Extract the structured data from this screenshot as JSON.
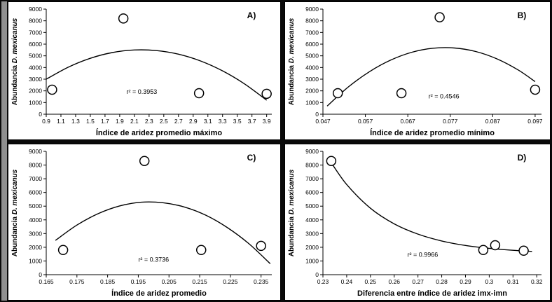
{
  "figure": {
    "background_color": "#0a0a0a",
    "panel_background": "#ffffff",
    "left_strip_color": "#8f8f8f",
    "line_color": "#000000"
  },
  "yaxis": {
    "label_prefix": "Abundancia",
    "label_species": "D. mexicanus",
    "tick_values": [
      0,
      1000,
      2000,
      3000,
      4000,
      5000,
      6000,
      7000,
      8000,
      9000
    ],
    "tick_labels": [
      "0",
      "1000",
      "2000",
      "3000",
      "4000",
      "5000",
      "6000",
      "7000",
      "8000",
      "9000"
    ],
    "range": [
      0,
      9000
    ]
  },
  "chart_data": [
    {
      "id": "panel-a",
      "type": "scatter",
      "panel_label": "A)",
      "xlabel": "Índice de aridez promedio máximo",
      "ylabel": "Abundancia D. mexicanus",
      "grid": false,
      "legend": "none",
      "r2": {
        "text": "r² = 0.3953",
        "x": 2.2,
        "y": 1750
      },
      "xlim": [
        0.9,
        3.97
      ],
      "ylim": [
        0,
        9000
      ],
      "xtick_values": [
        0.9,
        1.1,
        1.3,
        1.5,
        1.7,
        1.9,
        2.1,
        2.3,
        2.5,
        2.7,
        2.9,
        3.1,
        3.3,
        3.5,
        3.7,
        3.9
      ],
      "xtick_labels": [
        "0.9",
        "1.1",
        "1.3",
        "1.5",
        "1.7",
        "1.9",
        "2.1",
        "2.3",
        "2.5",
        "2.7",
        "2.9",
        "3.1",
        "3.3",
        "3.5",
        "3.7",
        "3.9"
      ],
      "points": [
        [
          0.98,
          2100
        ],
        [
          1.95,
          8200
        ],
        [
          2.98,
          1800
        ],
        [
          3.9,
          1750
        ]
      ],
      "trend_type": "quadratic",
      "trend": [
        [
          0.9,
          3000
        ],
        [
          1.2,
          4030
        ],
        [
          1.5,
          4790
        ],
        [
          1.8,
          5280
        ],
        [
          2.1,
          5500
        ],
        [
          2.4,
          5450
        ],
        [
          2.7,
          5140
        ],
        [
          3.0,
          4560
        ],
        [
          3.3,
          3710
        ],
        [
          3.6,
          2590
        ],
        [
          3.9,
          1200
        ]
      ]
    },
    {
      "id": "panel-b",
      "type": "scatter",
      "panel_label": "B)",
      "xlabel": "Índice de aridez promedio mínimo",
      "ylabel": "Abundancia D. mexicanus",
      "grid": false,
      "legend": "none",
      "r2": {
        "text": "r² = 0.4546",
        "x": 0.0755,
        "y": 1350
      },
      "xlim": [
        0.047,
        0.0985
      ],
      "ylim": [
        0,
        9000
      ],
      "xtick_values": [
        0.047,
        0.057,
        0.067,
        0.077,
        0.087,
        0.097
      ],
      "xtick_labels": [
        "0.047",
        "0.057",
        "0.067",
        "0.077",
        "0.087",
        "0.097"
      ],
      "points": [
        [
          0.0505,
          1800
        ],
        [
          0.0655,
          1800
        ],
        [
          0.0745,
          8300
        ],
        [
          0.097,
          2100
        ]
      ],
      "trend_type": "quadratic",
      "trend": [
        [
          0.048,
          700
        ],
        [
          0.053,
          2340
        ],
        [
          0.058,
          3650
        ],
        [
          0.063,
          4640
        ],
        [
          0.068,
          5310
        ],
        [
          0.073,
          5650
        ],
        [
          0.078,
          5670
        ],
        [
          0.083,
          5370
        ],
        [
          0.088,
          4740
        ],
        [
          0.093,
          3790
        ],
        [
          0.097,
          2790
        ]
      ]
    },
    {
      "id": "panel-c",
      "type": "scatter",
      "panel_label": "C)",
      "xlabel": "Índice de aridez promedio",
      "ylabel": "Abundancia D. mexicanus",
      "grid": false,
      "legend": "none",
      "r2": {
        "text": "r² = 0.3736",
        "x": 0.2,
        "y": 950
      },
      "xlim": [
        0.165,
        0.2385
      ],
      "ylim": [
        0,
        9000
      ],
      "xtick_values": [
        0.165,
        0.175,
        0.185,
        0.195,
        0.205,
        0.215,
        0.225,
        0.235
      ],
      "xtick_labels": [
        "0.165",
        "0.175",
        "0.185",
        "0.195",
        "0.205",
        "0.215",
        "0.225",
        "0.235"
      ],
      "points": [
        [
          0.1705,
          1800
        ],
        [
          0.197,
          8300
        ],
        [
          0.2155,
          1800
        ],
        [
          0.235,
          2100
        ]
      ],
      "trend_type": "quadratic",
      "trend": [
        [
          0.168,
          2500
        ],
        [
          0.175,
          3620
        ],
        [
          0.182,
          4460
        ],
        [
          0.189,
          5020
        ],
        [
          0.196,
          5290
        ],
        [
          0.203,
          5250
        ],
        [
          0.21,
          4940
        ],
        [
          0.217,
          4340
        ],
        [
          0.224,
          3440
        ],
        [
          0.231,
          2270
        ],
        [
          0.238,
          800
        ]
      ]
    },
    {
      "id": "panel-d",
      "type": "scatter",
      "panel_label": "D)",
      "xlabel": "Diferencia entre índice de aridez imx-imn",
      "ylabel": "Abundancia D. mexicanus",
      "grid": false,
      "legend": "none",
      "r2": {
        "text": "r² = 0.9966",
        "x": 0.272,
        "y": 1300
      },
      "xlim": [
        0.23,
        0.322
      ],
      "ylim": [
        0,
        9000
      ],
      "xtick_values": [
        0.23,
        0.24,
        0.25,
        0.26,
        0.27,
        0.28,
        0.29,
        0.3,
        0.31,
        0.32
      ],
      "xtick_labels": [
        "0.23",
        "0.24",
        "0.25",
        "0.26",
        "0.27",
        "0.28",
        "0.29",
        "0.3",
        "0.31",
        "0.32"
      ],
      "points": [
        [
          0.2335,
          8300
        ],
        [
          0.2975,
          1800
        ],
        [
          0.3025,
          2150
        ],
        [
          0.3145,
          1750
        ]
      ],
      "trend_type": "exponential",
      "trend": [
        [
          0.233,
          8300
        ],
        [
          0.24,
          6580
        ],
        [
          0.25,
          4850
        ],
        [
          0.26,
          3710
        ],
        [
          0.27,
          2960
        ],
        [
          0.28,
          2460
        ],
        [
          0.29,
          2130
        ],
        [
          0.3,
          1920
        ],
        [
          0.31,
          1780
        ],
        [
          0.318,
          1700
        ]
      ]
    }
  ]
}
